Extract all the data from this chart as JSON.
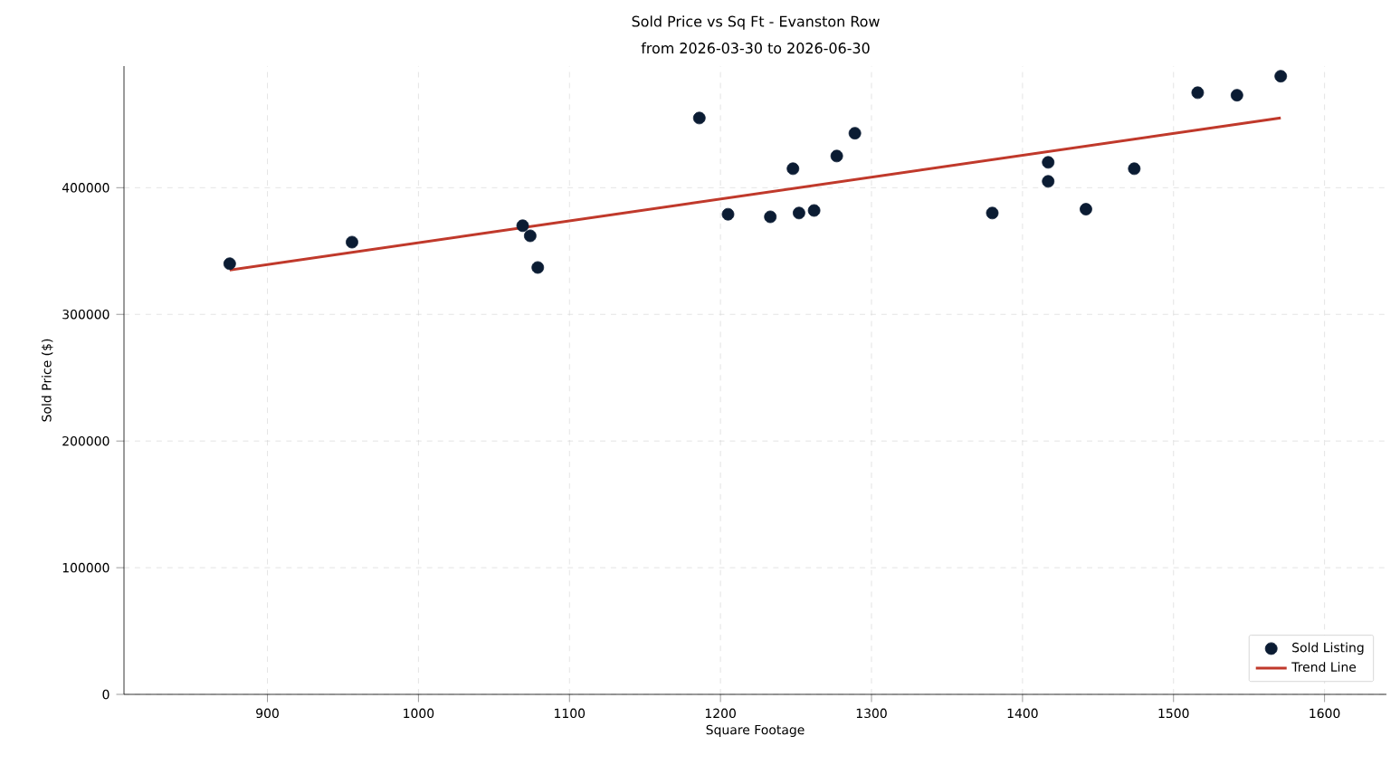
{
  "chart_data": {
    "type": "scatter",
    "title": "Sold Price vs Sq Ft - Evanston Row",
    "subtitle": "from 2026-03-30 to 2026-06-30",
    "xlabel": "Square Footage",
    "ylabel": "Sold Price ($)",
    "xlim": [
      805,
      1641
    ],
    "ylim": [
      0,
      496000
    ],
    "xticks": [
      900,
      1000,
      1100,
      1200,
      1300,
      1400,
      1500,
      1600
    ],
    "yticks": [
      0,
      100000,
      200000,
      300000,
      400000
    ],
    "grid": true,
    "legend": "bottom right",
    "series": [
      {
        "name": "Sold Listing",
        "type": "scatter",
        "marker": "circle",
        "color": "#0b1c33",
        "x": [
          875,
          956,
          1069,
          1074,
          1079,
          1186,
          1205,
          1233,
          1248,
          1252,
          1262,
          1277,
          1289,
          1380,
          1417,
          1417,
          1442,
          1474,
          1516,
          1542,
          1571
        ],
        "values": [
          340000,
          357000,
          370000,
          362000,
          337000,
          455000,
          379000,
          377000,
          415000,
          380000,
          382000,
          425000,
          443000,
          380000,
          420000,
          405000,
          383000,
          415000,
          475000,
          473000,
          488000
        ]
      },
      {
        "name": "Trend Line",
        "type": "line",
        "marker": "none",
        "line_style": "solid",
        "color": "#c0392b",
        "x": [
          875,
          1571
        ],
        "values": [
          335000,
          455000
        ]
      }
    ]
  }
}
